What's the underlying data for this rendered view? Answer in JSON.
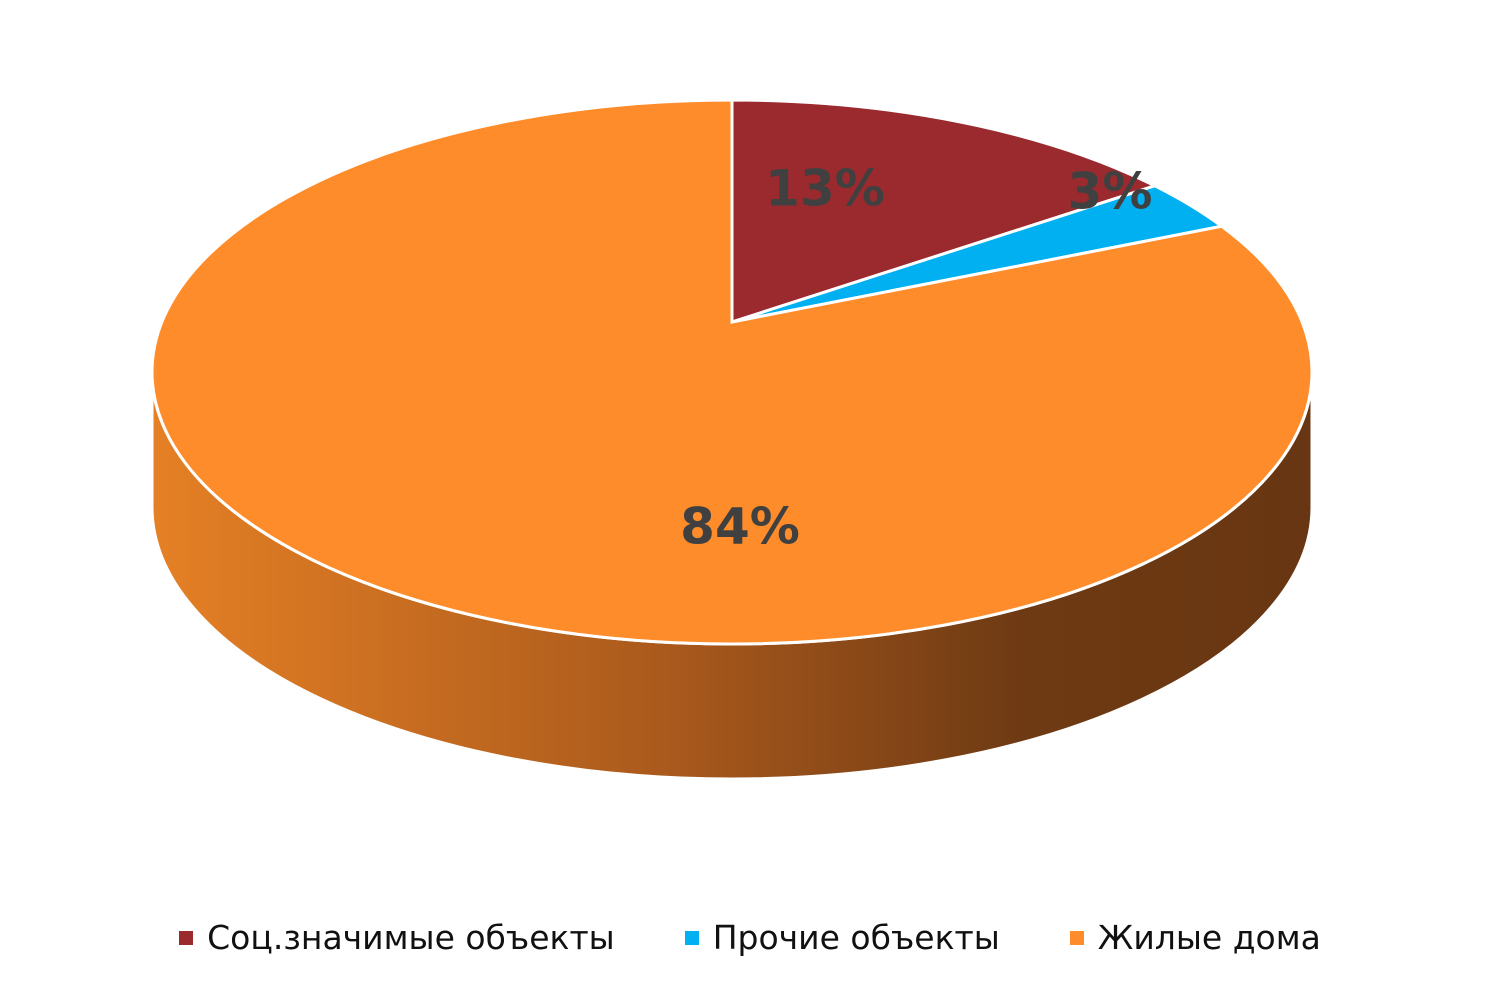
{
  "chart_data": {
    "type": "pie",
    "style": "3d",
    "title": "",
    "categories": [
      "Соц.значимые объекты",
      "Прочие объекты",
      "Жилые дома"
    ],
    "values": [
      13,
      3,
      84
    ],
    "labels": [
      "13%",
      "3%",
      "84%"
    ],
    "colors": [
      "#9B2A2F",
      "#00B0F0",
      "#FF8C2A"
    ],
    "legend_position": "bottom"
  }
}
